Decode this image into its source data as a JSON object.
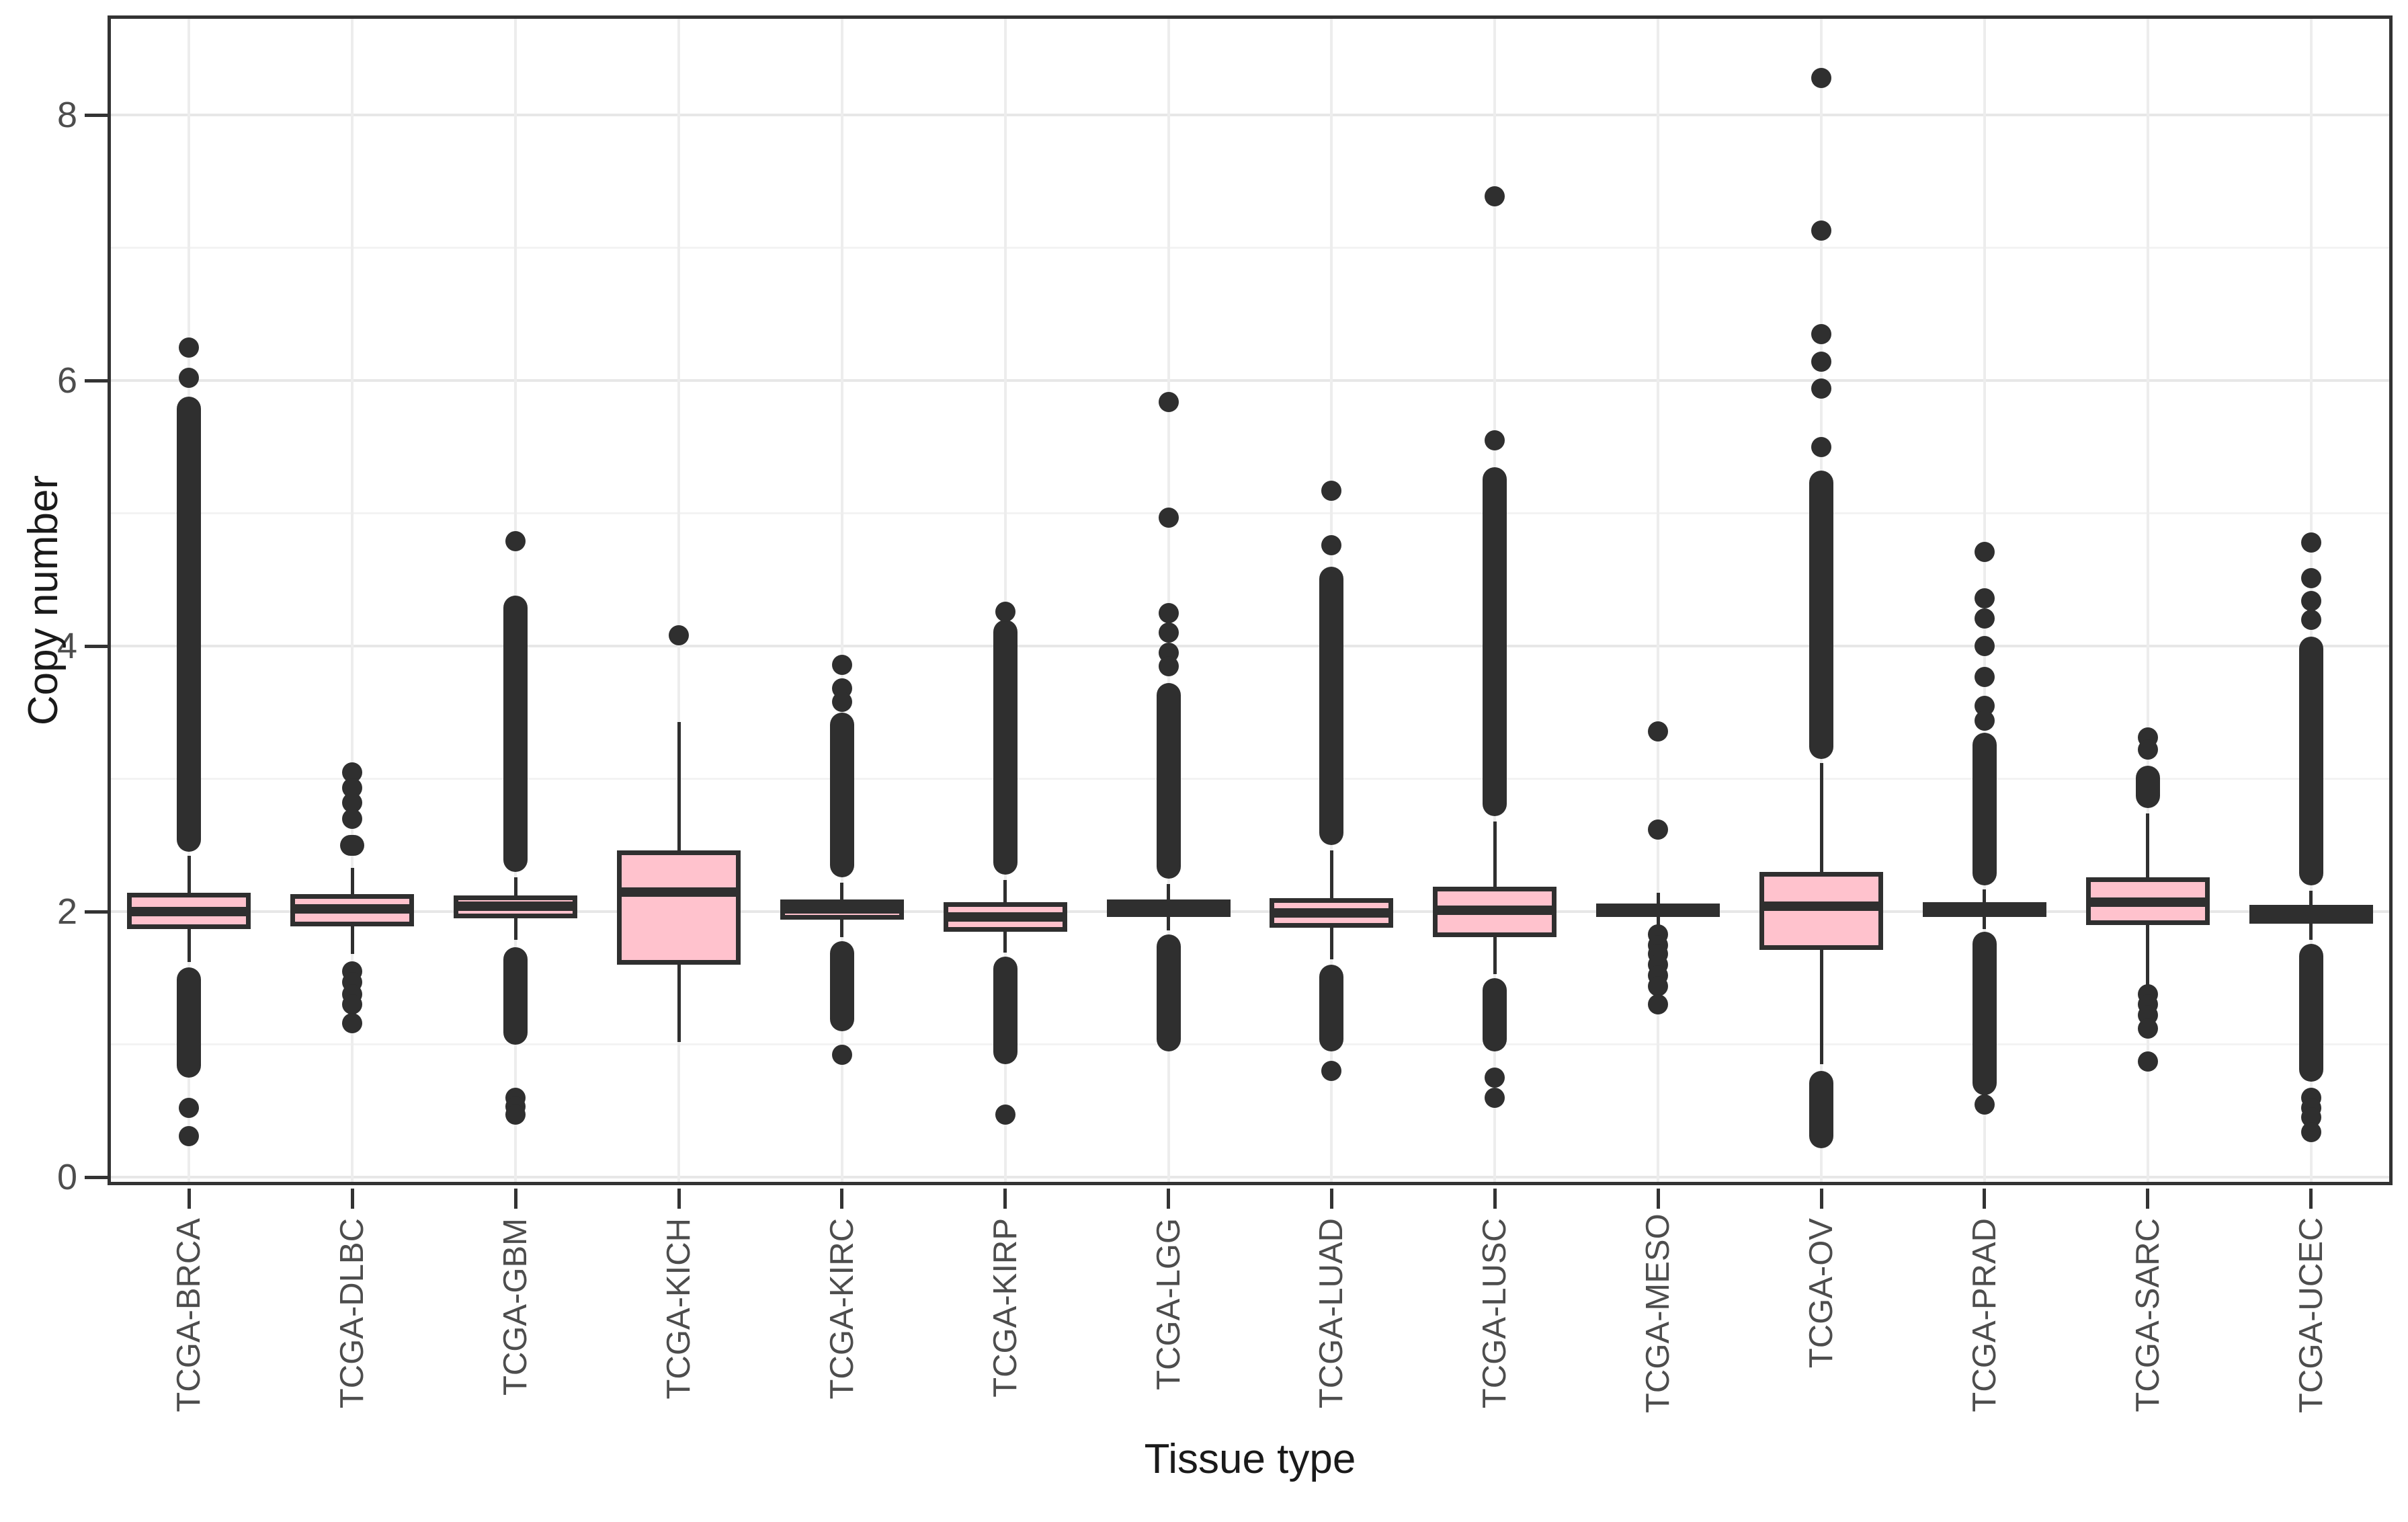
{
  "chart_data": {
    "type": "boxplot",
    "title": "",
    "xlabel": "Tissue type",
    "ylabel": "Copy number",
    "ylim": [
      -0.06,
      8.75
    ],
    "yticks": [
      0,
      2,
      4,
      6,
      8
    ],
    "yminor": [
      1,
      3,
      5,
      7
    ],
    "grid": "major+minor, light gray on white, full dark panel border",
    "legend": "none",
    "colors": {
      "box_fill": "#ffc2cd",
      "stroke": "#2f2f2f",
      "grid_major": "#e7e7e7",
      "grid_minor": "#f3f3f3",
      "panel_border": "#333333",
      "tick_label": "#4d4d4d",
      "axis_title": "#1a1a1a"
    },
    "categories": [
      "TCGA-BRCA",
      "TCGA-DLBC",
      "TCGA-GBM",
      "TCGA-KICH",
      "TCGA-KIRC",
      "TCGA-KIRP",
      "TCGA-LGG",
      "TCGA-LUAD",
      "TCGA-LUSC",
      "TCGA-MESO",
      "TCGA-OV",
      "TCGA-PRAD",
      "TCGA-SARC",
      "TCGA-UCEC"
    ],
    "boxes": [
      {
        "label": "TCGA-BRCA",
        "median": 2.0,
        "q1": 1.87,
        "q3": 2.14,
        "whisker_low": 1.62,
        "whisker_high": 2.42,
        "outlier_bands": [
          [
            2.45,
            5.88
          ],
          [
            0.75,
            1.58
          ]
        ],
        "outliers": [
          6.25,
          6.02,
          0.52,
          0.31
        ]
      },
      {
        "label": "TCGA-DLBC",
        "median": 2.02,
        "q1": 1.89,
        "q3": 2.13,
        "whisker_low": 1.68,
        "whisker_high": 2.33,
        "outlier_bands": [
          [
            2.42,
            2.58
          ]
        ],
        "outliers": [
          3.05,
          2.93,
          2.82,
          2.7,
          1.55,
          1.47,
          1.38,
          1.3,
          1.16
        ]
      },
      {
        "label": "TCGA-GBM",
        "median": 2.04,
        "q1": 1.95,
        "q3": 2.12,
        "whisker_low": 1.79,
        "whisker_high": 2.26,
        "outlier_bands": [
          [
            2.3,
            4.38
          ],
          [
            1.0,
            1.73
          ]
        ],
        "outliers": [
          4.79,
          0.6,
          0.53,
          0.47
        ]
      },
      {
        "label": "TCGA-KICH",
        "median": 2.15,
        "q1": 1.6,
        "q3": 2.46,
        "whisker_low": 1.02,
        "whisker_high": 3.43,
        "outlier_bands": [],
        "outliers": [
          4.08
        ]
      },
      {
        "label": "TCGA-KIRC",
        "median": 2.02,
        "q1": 1.94,
        "q3": 2.09,
        "whisker_low": 1.81,
        "whisker_high": 2.22,
        "outlier_bands": [
          [
            2.26,
            3.5
          ],
          [
            1.1,
            1.78
          ]
        ],
        "outliers": [
          3.86,
          3.68,
          3.58,
          0.92
        ]
      },
      {
        "label": "TCGA-KIRP",
        "median": 1.96,
        "q1": 1.85,
        "q3": 2.07,
        "whisker_low": 1.69,
        "whisker_high": 2.24,
        "outlier_bands": [
          [
            2.28,
            4.2
          ],
          [
            0.85,
            1.66
          ]
        ],
        "outliers": [
          4.26,
          0.47
        ]
      },
      {
        "label": "TCGA-LGG",
        "median": 2.03,
        "q1": 1.96,
        "q3": 2.09,
        "whisker_low": 1.86,
        "whisker_high": 2.21,
        "outlier_bands": [
          [
            2.25,
            3.72
          ],
          [
            0.95,
            1.83
          ]
        ],
        "outliers": [
          5.84,
          4.97,
          4.25,
          4.1,
          3.95,
          3.85
        ]
      },
      {
        "label": "TCGA-LUAD",
        "median": 1.99,
        "q1": 1.88,
        "q3": 2.1,
        "whisker_low": 1.64,
        "whisker_high": 2.46,
        "outlier_bands": [
          [
            2.5,
            4.6
          ],
          [
            0.95,
            1.6
          ]
        ],
        "outliers": [
          5.17,
          4.76,
          0.8
        ]
      },
      {
        "label": "TCGA-LUSC",
        "median": 2.01,
        "q1": 1.81,
        "q3": 2.19,
        "whisker_low": 1.53,
        "whisker_high": 2.68,
        "outlier_bands": [
          [
            2.72,
            5.35
          ],
          [
            0.95,
            1.5
          ]
        ],
        "outliers": [
          7.39,
          5.55,
          0.75,
          0.6
        ]
      },
      {
        "label": "TCGA-MESO",
        "median": 2.01,
        "q1": 1.96,
        "q3": 2.06,
        "whisker_low": 1.88,
        "whisker_high": 2.14,
        "outlier_bands": [],
        "outliers": [
          3.36,
          2.62,
          1.83,
          1.75,
          1.68,
          1.6,
          1.52,
          1.44,
          1.3
        ]
      },
      {
        "label": "TCGA-OV",
        "median": 2.04,
        "q1": 1.71,
        "q3": 2.3,
        "whisker_low": 0.85,
        "whisker_high": 3.12,
        "outlier_bands": [
          [
            3.15,
            5.32
          ],
          [
            0.22,
            0.8
          ]
        ],
        "outliers": [
          8.28,
          7.13,
          6.35,
          6.14,
          5.94,
          5.5
        ]
      },
      {
        "label": "TCGA-PRAD",
        "median": 2.02,
        "q1": 1.96,
        "q3": 2.07,
        "whisker_low": 1.87,
        "whisker_high": 2.17,
        "outlier_bands": [
          [
            2.2,
            3.35
          ],
          [
            0.62,
            1.85
          ]
        ],
        "outliers": [
          4.71,
          4.36,
          4.21,
          4.0,
          3.77,
          3.55,
          3.44,
          0.55
        ]
      },
      {
        "label": "TCGA-SARC",
        "median": 2.07,
        "q1": 1.9,
        "q3": 2.26,
        "whisker_low": 1.43,
        "whisker_high": 2.74,
        "outlier_bands": [
          [
            2.78,
            3.1
          ]
        ],
        "outliers": [
          3.31,
          3.22,
          1.38,
          1.3,
          1.22,
          1.12,
          0.87
        ]
      },
      {
        "label": "TCGA-UCEC",
        "median": 1.98,
        "q1": 1.91,
        "q3": 2.05,
        "whisker_low": 1.79,
        "whisker_high": 2.16,
        "outlier_bands": [
          [
            2.2,
            4.07
          ],
          [
            0.72,
            1.76
          ]
        ],
        "outliers": [
          4.78,
          4.51,
          4.34,
          4.2,
          0.6,
          0.52,
          0.45,
          0.34
        ]
      }
    ]
  }
}
